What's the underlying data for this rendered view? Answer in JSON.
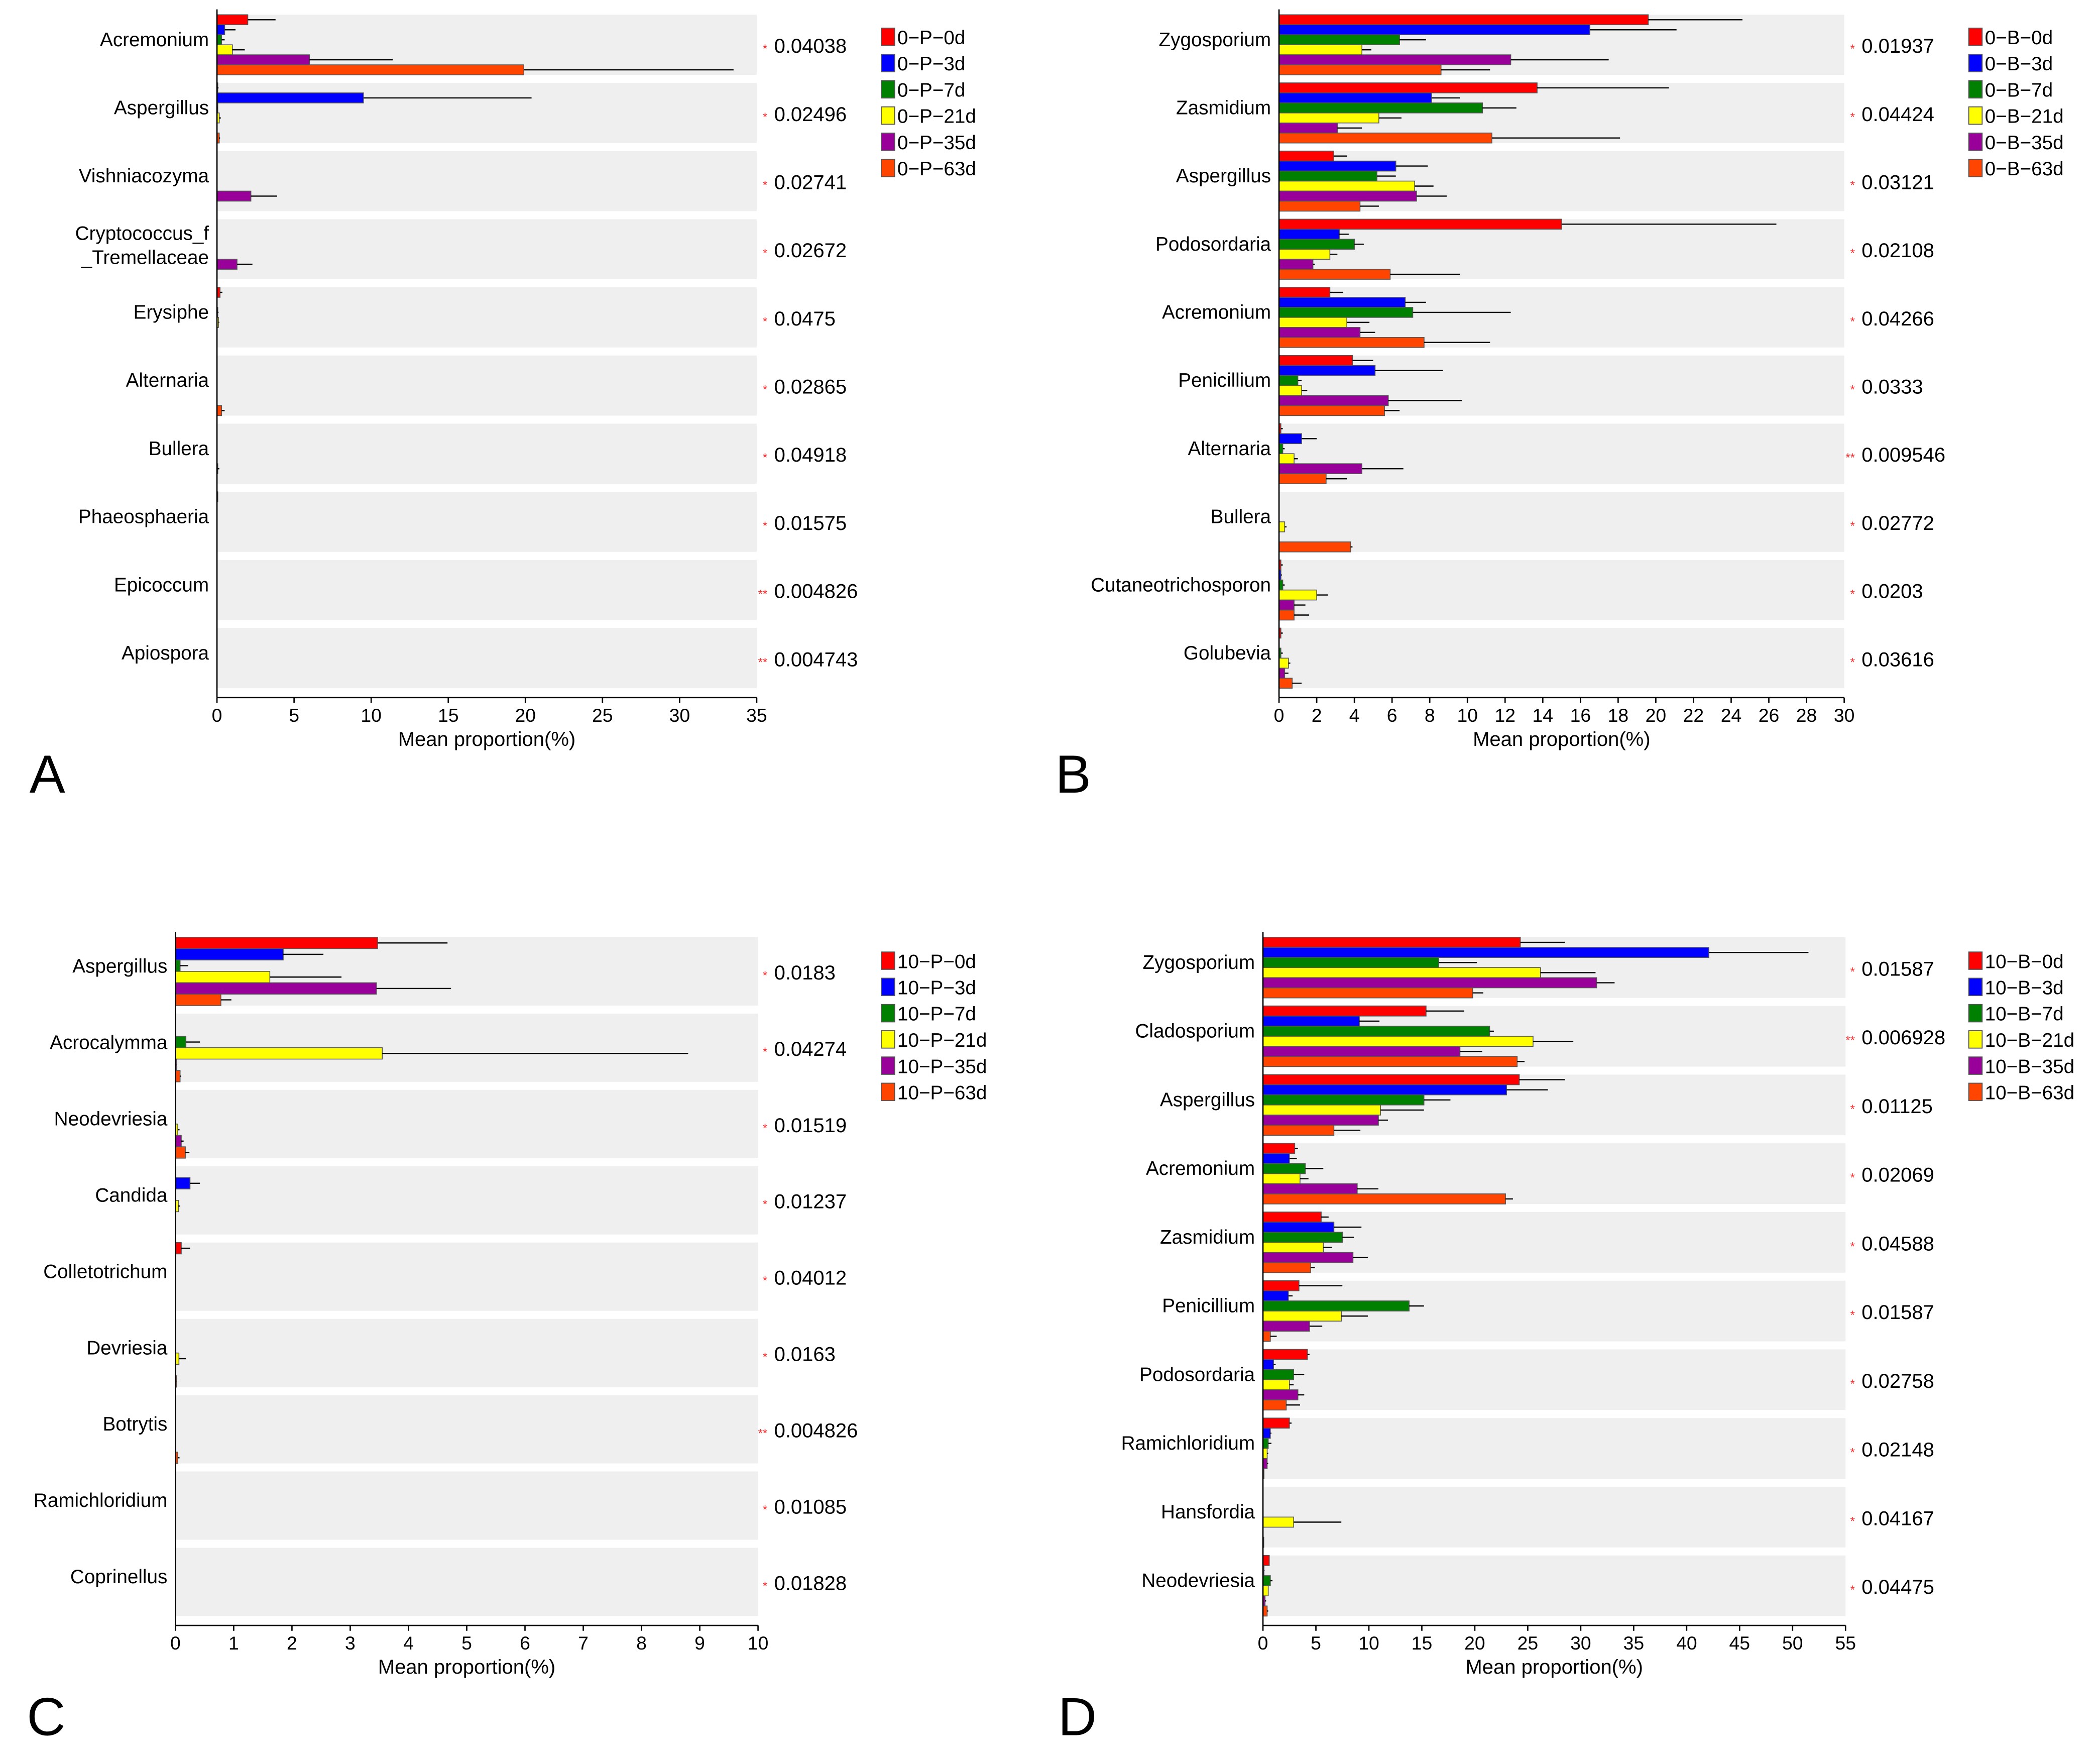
{
  "chart_data": [
    {
      "type": "bar",
      "orientation": "horizontal",
      "panel_letter": "A",
      "xlabel": "Mean proportion(%)",
      "xlim": [
        0,
        35
      ],
      "xticks": [
        0,
        5,
        10,
        15,
        20,
        25,
        30,
        35
      ],
      "categories": [
        "Acremonium",
        "Aspergillus",
        "Vishniacozyma",
        [
          "Cryptococcus_f",
          "_Tremellaceae"
        ],
        "Erysiphe",
        "Alternaria",
        "Bullera",
        "Phaeosphaeria",
        "Epicoccum",
        "Apiospora"
      ],
      "p_values": [
        "0.04038",
        "0.02496",
        "0.02741",
        "0.02672",
        "0.0475",
        "0.02865",
        "0.04918",
        "0.01575",
        "0.004826",
        "0.004743"
      ],
      "significance": [
        "*",
        "*",
        "*",
        "*",
        "*",
        "*",
        "*",
        "*",
        "**",
        "**"
      ],
      "legend_position": "top-right",
      "series": [
        {
          "name": "0−P−0d",
          "color": "#ff0000",
          "values": [
            2.0,
            0.05,
            0,
            0,
            0.2,
            0,
            0,
            0.02,
            0,
            0
          ],
          "error_upper": [
            3.8,
            0.1,
            0,
            0,
            0.35,
            0,
            0,
            0.03,
            0,
            0
          ]
        },
        {
          "name": "0−P−3d",
          "color": "#0000ff",
          "values": [
            0.5,
            9.5,
            0,
            0,
            0,
            0,
            0,
            0,
            0,
            0
          ],
          "error_upper": [
            1.2,
            20.4,
            0,
            0,
            0,
            0,
            0,
            0,
            0,
            0
          ]
        },
        {
          "name": "0−P−7d",
          "color": "#008000",
          "values": [
            0.3,
            0.02,
            0,
            0,
            0.05,
            0,
            0,
            0,
            0,
            0
          ],
          "error_upper": [
            0.5,
            0.05,
            0,
            0,
            0.1,
            0,
            0,
            0,
            0,
            0
          ]
        },
        {
          "name": "0−P−21d",
          "color": "#ffff00",
          "values": [
            1.0,
            0.15,
            0,
            0,
            0.1,
            0,
            0,
            0,
            0,
            0
          ],
          "error_upper": [
            1.8,
            0.25,
            0,
            0,
            0.15,
            0,
            0,
            0,
            0,
            0
          ]
        },
        {
          "name": "0−P−35d",
          "color": "#990099",
          "values": [
            6.0,
            0,
            2.2,
            1.3,
            0,
            0,
            0.05,
            0,
            0,
            0
          ],
          "error_upper": [
            11.4,
            0,
            3.9,
            2.3,
            0,
            0,
            0.15,
            0,
            0,
            0
          ]
        },
        {
          "name": "0−P−63d",
          "color": "#ff4500",
          "values": [
            19.9,
            0.15,
            0,
            0,
            0,
            0.3,
            0,
            0,
            0,
            0
          ],
          "error_upper": [
            33.5,
            0.2,
            0,
            0,
            0,
            0.5,
            0,
            0,
            0,
            0
          ]
        }
      ]
    },
    {
      "type": "bar",
      "orientation": "horizontal",
      "panel_letter": "B",
      "xlabel": "Mean proportion(%)",
      "xlim": [
        0,
        30
      ],
      "xticks": [
        0,
        2,
        4,
        6,
        8,
        10,
        12,
        14,
        16,
        18,
        20,
        22,
        24,
        26,
        28,
        30
      ],
      "categories": [
        "Zygosporium",
        "Zasmidium",
        "Aspergillus",
        "Podosordaria",
        "Acremonium",
        "Penicillium",
        "Alternaria",
        "Bullera",
        "Cutaneotrichosporon",
        "Golubevia"
      ],
      "p_values": [
        "0.01937",
        "0.04424",
        "0.03121",
        "0.02108",
        "0.04266",
        "0.0333",
        "0.009546",
        "0.02772",
        "0.0203",
        "0.03616"
      ],
      "significance": [
        "*",
        "*",
        "*",
        "*",
        "*",
        "*",
        "**",
        "*",
        "*",
        "*"
      ],
      "legend_position": "top-right",
      "series": [
        {
          "name": "0−B−0d",
          "color": "#ff0000",
          "values": [
            19.6,
            13.7,
            2.9,
            15.0,
            2.7,
            3.9,
            0.1,
            0,
            0.1,
            0.1
          ],
          "error_upper": [
            24.6,
            20.7,
            3.6,
            26.4,
            3.4,
            5.0,
            0.2,
            0,
            0.2,
            0.2
          ]
        },
        {
          "name": "0−B−3d",
          "color": "#0000ff",
          "values": [
            16.5,
            8.1,
            6.2,
            3.2,
            6.7,
            5.1,
            1.2,
            0,
            0.1,
            0
          ],
          "error_upper": [
            21.1,
            9.6,
            7.9,
            3.7,
            7.8,
            8.7,
            2.0,
            0,
            0.15,
            0
          ]
        },
        {
          "name": "0−B−7d",
          "color": "#008000",
          "values": [
            6.4,
            10.8,
            5.2,
            4.0,
            7.1,
            1.0,
            0.2,
            0,
            0.2,
            0.1
          ],
          "error_upper": [
            7.8,
            12.6,
            6.2,
            4.5,
            12.3,
            1.2,
            0.3,
            0,
            0.3,
            0.2
          ]
        },
        {
          "name": "0−B−21d",
          "color": "#ffff00",
          "values": [
            4.4,
            5.3,
            7.2,
            2.7,
            3.6,
            1.2,
            0.8,
            0.3,
            2.0,
            0.5
          ],
          "error_upper": [
            4.9,
            6.5,
            8.2,
            3.1,
            4.8,
            1.5,
            1.0,
            0.4,
            2.6,
            0.6
          ]
        },
        {
          "name": "0−B−35d",
          "color": "#990099",
          "values": [
            12.3,
            3.1,
            7.3,
            1.8,
            4.3,
            5.8,
            4.4,
            0,
            0.8,
            0.3
          ],
          "error_upper": [
            17.5,
            4.4,
            8.9,
            1.9,
            5.1,
            9.7,
            6.6,
            0,
            1.4,
            0.5
          ]
        },
        {
          "name": "0−B−63d",
          "color": "#ff4500",
          "values": [
            8.6,
            11.3,
            4.3,
            5.9,
            7.7,
            5.6,
            2.5,
            3.8,
            0.8,
            0.7
          ],
          "error_upper": [
            11.2,
            18.1,
            5.3,
            9.6,
            11.2,
            6.4,
            3.6,
            3.9,
            1.6,
            1.2
          ]
        }
      ]
    },
    {
      "type": "bar",
      "orientation": "horizontal",
      "panel_letter": "C",
      "xlabel": "Mean proportion(%)",
      "xlim": [
        0,
        10
      ],
      "xticks": [
        0,
        1,
        2,
        3,
        4,
        5,
        6,
        7,
        8,
        9,
        10
      ],
      "categories": [
        "Aspergillus",
        "Acrocalymma",
        "Neodevriesia",
        "Candida",
        "Colletotrichum",
        "Devriesia",
        "Botrytis",
        "Ramichloridium",
        "Coprinellus"
      ],
      "p_values": [
        "0.0183",
        "0.04274",
        "0.01519",
        "0.01237",
        "0.04012",
        "0.0163",
        "0.004826",
        "0.01085",
        "0.01828"
      ],
      "significance": [
        "*",
        "*",
        "*",
        "*",
        "*",
        "*",
        "**",
        "*",
        "*"
      ],
      "legend_position": "top-right",
      "series": [
        {
          "name": "10−P−0d",
          "color": "#ff0000",
          "values": [
            3.47,
            0,
            0,
            0,
            0.1,
            0,
            0,
            0,
            0
          ],
          "error_upper": [
            4.67,
            0,
            0,
            0,
            0.25,
            0,
            0,
            0,
            0
          ]
        },
        {
          "name": "10−P−3d",
          "color": "#0000ff",
          "values": [
            1.85,
            0,
            0,
            0.25,
            0,
            0,
            0,
            0,
            0
          ],
          "error_upper": [
            2.54,
            0,
            0,
            0.42,
            0,
            0,
            0,
            0,
            0
          ]
        },
        {
          "name": "10−P−7d",
          "color": "#008000",
          "values": [
            0.08,
            0.18,
            0,
            0,
            0,
            0,
            0,
            0,
            0
          ],
          "error_upper": [
            0.22,
            0.42,
            0,
            0,
            0,
            0,
            0,
            0,
            0
          ]
        },
        {
          "name": "10−P−21d",
          "color": "#ffff00",
          "values": [
            1.62,
            3.55,
            0.04,
            0.05,
            0,
            0.06,
            0,
            0,
            0
          ],
          "error_upper": [
            2.85,
            8.8,
            0.07,
            0.08,
            0,
            0.18,
            0,
            0,
            0
          ]
        },
        {
          "name": "10−P−35d",
          "color": "#990099",
          "values": [
            3.45,
            0.02,
            0.1,
            0,
            0,
            0,
            0,
            0,
            0
          ],
          "error_upper": [
            4.73,
            0.03,
            0.14,
            0,
            0,
            0,
            0,
            0,
            0
          ]
        },
        {
          "name": "10−P−63d",
          "color": "#ff4500",
          "values": [
            0.78,
            0.08,
            0.17,
            0,
            0,
            0.02,
            0.04,
            0,
            0
          ],
          "error_upper": [
            0.96,
            0.1,
            0.24,
            0,
            0,
            0.03,
            0.07,
            0,
            0
          ]
        }
      ]
    },
    {
      "type": "bar",
      "orientation": "horizontal",
      "panel_letter": "D",
      "xlabel": "Mean proportion(%)",
      "xlim": [
        0,
        55
      ],
      "xticks": [
        0,
        5,
        10,
        15,
        20,
        25,
        30,
        35,
        40,
        45,
        50,
        55
      ],
      "categories": [
        "Zygosporium",
        "Cladosporium",
        "Aspergillus",
        "Acremonium",
        "Zasmidium",
        "Penicillium",
        "Podosordaria",
        "Ramichloridium",
        "Hansfordia",
        "Neodevriesia"
      ],
      "p_values": [
        "0.01587",
        "0.006928",
        "0.01125",
        "0.02069",
        "0.04588",
        "0.01587",
        "0.02758",
        "0.02148",
        "0.04167",
        "0.04475"
      ],
      "significance": [
        "*",
        "**",
        "*",
        "*",
        "*",
        "*",
        "*",
        "*",
        "*",
        "*"
      ],
      "legend_position": "top-right",
      "series": [
        {
          "name": "10−B−0d",
          "color": "#ff0000",
          "values": [
            24.3,
            15.4,
            24.2,
            3.0,
            5.5,
            3.4,
            4.2,
            2.5,
            0,
            0.6
          ],
          "error_upper": [
            28.5,
            19.0,
            28.5,
            3.3,
            6.2,
            7.5,
            4.4,
            2.7,
            0,
            0.6
          ]
        },
        {
          "name": "10−B−3d",
          "color": "#0000ff",
          "values": [
            42.1,
            9.1,
            23.0,
            2.5,
            6.7,
            2.4,
            1.0,
            0.7,
            0,
            0.1
          ],
          "error_upper": [
            51.5,
            11.0,
            26.9,
            3.2,
            9.3,
            2.8,
            1.2,
            0.8,
            0,
            0.15
          ]
        },
        {
          "name": "10−B−7d",
          "color": "#008000",
          "values": [
            16.6,
            21.4,
            15.2,
            4.0,
            7.5,
            13.8,
            2.9,
            0.5,
            0,
            0.7
          ],
          "error_upper": [
            20.2,
            21.8,
            17.7,
            5.7,
            8.6,
            15.2,
            3.9,
            0.8,
            0,
            0.9
          ]
        },
        {
          "name": "10−B−21d",
          "color": "#ffff00",
          "values": [
            26.2,
            25.5,
            11.1,
            3.5,
            5.7,
            7.4,
            2.5,
            0.4,
            2.9,
            0.5
          ],
          "error_upper": [
            31.4,
            29.3,
            15.2,
            4.3,
            6.5,
            9.9,
            2.9,
            0.5,
            7.4,
            0.5
          ]
        },
        {
          "name": "10−B−35d",
          "color": "#990099",
          "values": [
            31.5,
            18.6,
            10.9,
            8.9,
            8.5,
            4.4,
            3.3,
            0.4,
            0,
            0.2
          ],
          "error_upper": [
            33.2,
            20.7,
            11.8,
            10.9,
            9.9,
            5.6,
            3.9,
            0.5,
            0,
            0.3
          ]
        },
        {
          "name": "10−B−63d",
          "color": "#ff4500",
          "values": [
            19.8,
            24.0,
            6.7,
            22.9,
            4.5,
            0.7,
            2.2,
            0.1,
            0.05,
            0.4
          ],
          "error_upper": [
            20.8,
            24.7,
            9.2,
            23.6,
            4.9,
            1.3,
            3.5,
            0.1,
            0.05,
            0.5
          ]
        }
      ]
    }
  ]
}
